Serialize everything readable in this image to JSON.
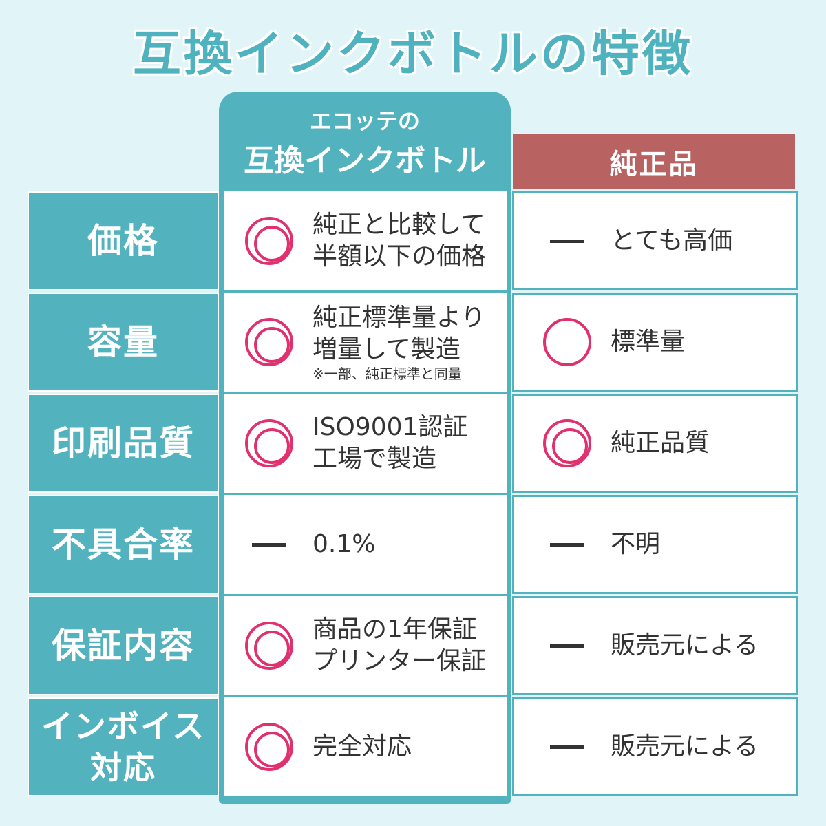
{
  "title": "互換インクボトルの特徴",
  "columns": {
    "compat_sub": "エコッテの",
    "compat_main": "互換インクボトル",
    "genuine": "純正品"
  },
  "colors": {
    "teal": "#52b3bf",
    "genuine_header": "#b96262",
    "mark": "#e0306e",
    "background": "#e1f4f7"
  },
  "rows": [
    {
      "label": "価格",
      "compat": {
        "mark": "double-circle",
        "lines": [
          "純正と比較して",
          "半額以下の価格"
        ]
      },
      "genuine": {
        "mark": "dash",
        "text": "とても高価"
      }
    },
    {
      "label": "容量",
      "compat": {
        "mark": "double-circle",
        "lines": [
          "純正標準量より",
          "増量して製造"
        ],
        "note": "※一部、純正標準と同量"
      },
      "genuine": {
        "mark": "circle",
        "text": "標準量"
      }
    },
    {
      "label": "印刷品質",
      "compat": {
        "mark": "double-circle",
        "lines": [
          "ISO9001認証",
          "工場で製造"
        ]
      },
      "genuine": {
        "mark": "double-circle",
        "text": "純正品質"
      }
    },
    {
      "label": "不具合率",
      "compat": {
        "mark": "dash",
        "lines": [
          "0.1%"
        ]
      },
      "genuine": {
        "mark": "dash",
        "text": "不明"
      }
    },
    {
      "label": "保証内容",
      "compat": {
        "mark": "double-circle",
        "lines": [
          "商品の1年保証",
          "プリンター保証"
        ]
      },
      "genuine": {
        "mark": "dash",
        "text": "販売元による"
      }
    },
    {
      "label_lines": [
        "インボイス",
        "対応"
      ],
      "compat": {
        "mark": "double-circle",
        "lines": [
          "完全対応"
        ]
      },
      "genuine": {
        "mark": "dash",
        "text": "販売元による"
      }
    }
  ]
}
